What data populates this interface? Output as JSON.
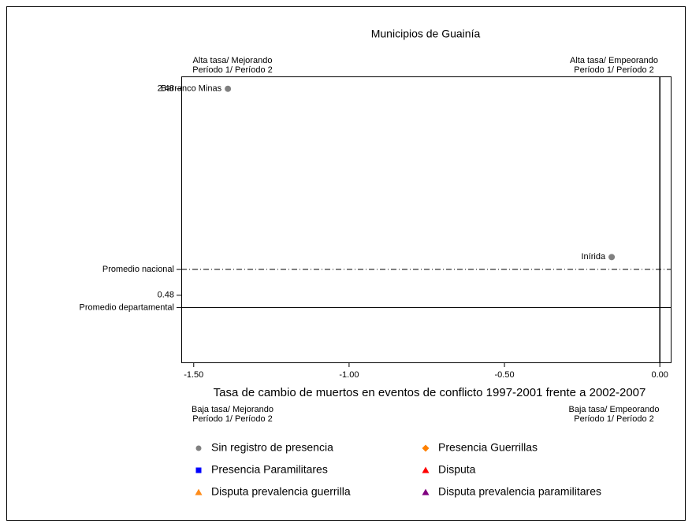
{
  "chart_data": {
    "type": "scatter",
    "title": "Municipios de Guainía",
    "x_label": "Tasa de cambio de muertos en eventos de conflicto 1997-2001 frente a 2002-2007",
    "xlim": [
      -1.54,
      0.035
    ],
    "ylim": [
      -0.17,
      2.6
    ],
    "xticks": [
      {
        "value": -1.5,
        "label": "-1.50"
      },
      {
        "value": -1.0,
        "label": "-1.00"
      },
      {
        "value": -0.5,
        "label": "-0.50"
      },
      {
        "value": 0.0,
        "label": "0.00"
      }
    ],
    "yticks": [
      {
        "value": 2.48,
        "label": "2.48"
      },
      0.48
    ],
    "reference_lines": [
      {
        "axis": "y",
        "label": "Promedio nacional",
        "value": 0.73,
        "style": "dashdot"
      },
      {
        "axis": "y",
        "label": "Promedio departamental",
        "value": 0.36,
        "style": "solid"
      },
      {
        "axis": "x",
        "value": 0.0,
        "style": "solid"
      }
    ],
    "annotations": [
      {
        "corner": "top-left",
        "lines": [
          "Alta tasa/ Mejorando",
          "Período 1/ Período 2"
        ]
      },
      {
        "corner": "top-right",
        "lines": [
          "Alta tasa/ Empeorando",
          "Período 1/ Período 2"
        ]
      },
      {
        "corner": "bottom-left",
        "lines": [
          "Baja tasa/ Mejorando",
          "Período 1/ Período 2"
        ]
      },
      {
        "corner": "bottom-right",
        "lines": [
          "Baja tasa/ Empeorando",
          "Período 1/ Período 2"
        ]
      }
    ],
    "series": [
      {
        "name": "Sin registro de presencia",
        "color": "#808080",
        "marker": "circle",
        "x": [
          -1.39,
          -0.155
        ],
        "values": [
          2.48,
          0.85
        ],
        "labels": [
          "Barranco Minas",
          "Inírida"
        ]
      },
      {
        "name": "Presencia Guerrillas",
        "color": "#ff8000",
        "marker": "diamond",
        "x": [],
        "values": [],
        "labels": []
      },
      {
        "name": "Presencia Paramilitares",
        "color": "#0000ff",
        "marker": "square",
        "x": [],
        "values": [],
        "labels": []
      },
      {
        "name": "Disputa",
        "color": "#ff0000",
        "marker": "triangle",
        "x": [],
        "values": [],
        "labels": []
      },
      {
        "name": "Disputa prevalencia guerrilla",
        "color": "#ff8c1a",
        "marker": "triangle",
        "x": [],
        "values": [],
        "labels": []
      },
      {
        "name": "Disputa prevalencia paramilitares",
        "color": "#800080",
        "marker": "triangle",
        "x": [],
        "values": [],
        "labels": []
      }
    ]
  }
}
